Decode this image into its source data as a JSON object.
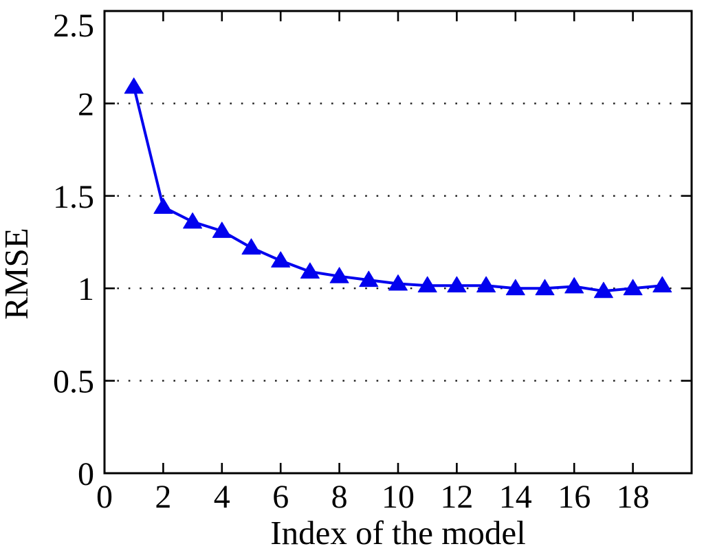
{
  "chart_data": {
    "type": "line",
    "xlabel": "Index of the model",
    "ylabel": "RMSE",
    "x": [
      1,
      2,
      3,
      4,
      5,
      6,
      7,
      8,
      9,
      10,
      11,
      12,
      13,
      14,
      15,
      16,
      17,
      18,
      19
    ],
    "series": [
      {
        "name": "RMSE",
        "color": "#0202ee",
        "marker": "triangle-up",
        "values": [
          2.09,
          1.44,
          1.36,
          1.31,
          1.22,
          1.15,
          1.09,
          1.065,
          1.045,
          1.025,
          1.015,
          1.015,
          1.015,
          1.0,
          1.0,
          1.01,
          0.985,
          1.0,
          1.015
        ]
      }
    ],
    "xlim": [
      0,
      20
    ],
    "ylim": [
      0,
      2.5
    ],
    "xticks": [
      0,
      2,
      4,
      6,
      8,
      10,
      12,
      14,
      16,
      18
    ],
    "xtick_labels": [
      "0",
      "2",
      "4",
      "6",
      "8",
      "10",
      "12",
      "14",
      "16",
      "18"
    ],
    "yticks": [
      0,
      0.5,
      1,
      1.5,
      2,
      2.5
    ],
    "ytick_labels": [
      "0",
      "0.5",
      "1",
      "1.5",
      "2",
      "2.5"
    ],
    "grid_y": [
      0.5,
      1,
      1.5,
      2
    ],
    "grid_style": "dotted",
    "grid_on": true,
    "legend": "none",
    "axis_color": "#000000",
    "grid_color": "#1a1a1a",
    "background": "#ffffff"
  }
}
